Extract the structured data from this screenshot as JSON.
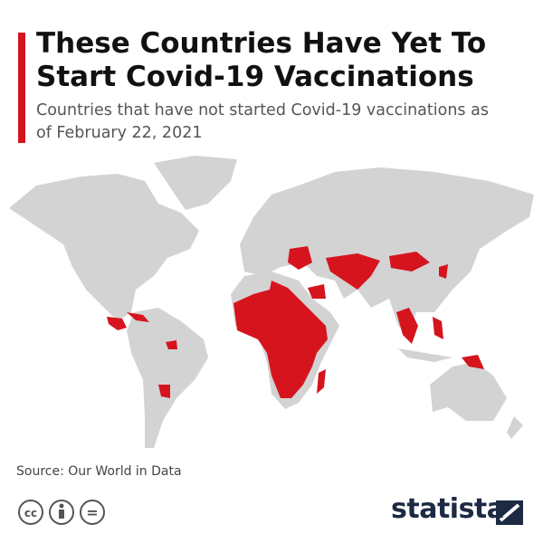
{
  "header": {
    "title": "These Countries Have Yet To Start Covid-19 Vaccinations",
    "subtitle": "Countries that have not started Covid-19 vaccinations as of February 22, 2021"
  },
  "footer": {
    "source": "Source: Our World in Data",
    "license_icons": [
      "cc",
      "="
    ],
    "logo": "statista"
  }
}
